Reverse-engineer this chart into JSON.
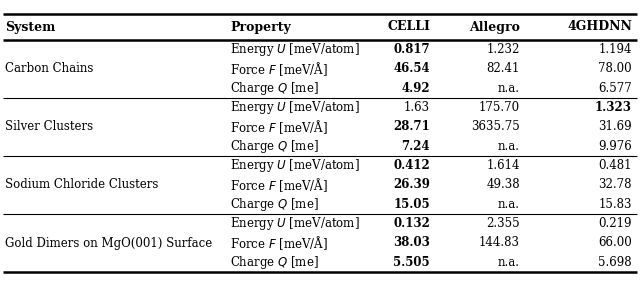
{
  "headers": [
    "System",
    "Property",
    "CELLI",
    "Allegro",
    "4GHDNN"
  ],
  "rows": [
    {
      "system": "Carbon Chains",
      "properties": [
        {
          "prop": "Energy $U$ [meV/atom]",
          "celli": "0.817",
          "allegro": "1.232",
          "ghdnn": "1.194",
          "bold_celli": true,
          "bold_ghdnn": false
        },
        {
          "prop": "Force $F$ [meV/Å]",
          "celli": "46.54",
          "allegro": "82.41",
          "ghdnn": "78.00",
          "bold_celli": true,
          "bold_ghdnn": false
        },
        {
          "prop": "Charge $Q$ [me]",
          "celli": "4.92",
          "allegro": "n.a.",
          "ghdnn": "6.577",
          "bold_celli": true,
          "bold_ghdnn": false
        }
      ]
    },
    {
      "system": "Silver Clusters",
      "properties": [
        {
          "prop": "Energy $U$ [meV/atom]",
          "celli": "1.63",
          "allegro": "175.70",
          "ghdnn": "1.323",
          "bold_celli": false,
          "bold_ghdnn": true
        },
        {
          "prop": "Force $F$ [meV/Å]",
          "celli": "28.71",
          "allegro": "3635.75",
          "ghdnn": "31.69",
          "bold_celli": true,
          "bold_ghdnn": false
        },
        {
          "prop": "Charge $Q$ [me]",
          "celli": "7.24",
          "allegro": "n.a.",
          "ghdnn": "9.976",
          "bold_celli": true,
          "bold_ghdnn": false
        }
      ]
    },
    {
      "system": "Sodium Chloride Clusters",
      "properties": [
        {
          "prop": "Energy $U$ [meV/atom]",
          "celli": "0.412",
          "allegro": "1.614",
          "ghdnn": "0.481",
          "bold_celli": true,
          "bold_ghdnn": false
        },
        {
          "prop": "Force $F$ [meV/Å]",
          "celli": "26.39",
          "allegro": "49.38",
          "ghdnn": "32.78",
          "bold_celli": true,
          "bold_ghdnn": false
        },
        {
          "prop": "Charge $Q$ [me]",
          "celli": "15.05",
          "allegro": "n.a.",
          "ghdnn": "15.83",
          "bold_celli": true,
          "bold_ghdnn": false
        }
      ]
    },
    {
      "system": "Gold Dimers on MgO(001) Surface",
      "properties": [
        {
          "prop": "Energy $U$ [meV/atom]",
          "celli": "0.132",
          "allegro": "2.355",
          "ghdnn": "0.219",
          "bold_celli": true,
          "bold_ghdnn": false
        },
        {
          "prop": "Force $F$ [meV/Å]",
          "celli": "38.03",
          "allegro": "144.83",
          "ghdnn": "66.00",
          "bold_celli": true,
          "bold_ghdnn": false
        },
        {
          "prop": "Charge $Q$ [me]",
          "celli": "5.505",
          "allegro": "n.a.",
          "ghdnn": "5.698",
          "bold_celli": true,
          "bold_ghdnn": false
        }
      ]
    }
  ],
  "header_fontsize": 9.0,
  "cell_fontsize": 8.5,
  "bg_color": "white"
}
